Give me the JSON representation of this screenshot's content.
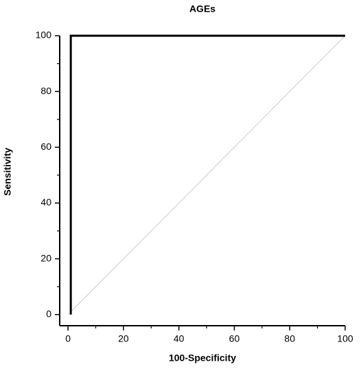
{
  "chart_data": {
    "type": "line",
    "title": "AGEs",
    "x_label": "100-Specificity",
    "y_label": "Sensitivity",
    "series": [
      {
        "color": "#cccccc",
        "x": [
          0,
          100
        ],
        "values": [
          0,
          100
        ]
      },
      {
        "color": "#000000",
        "x": [
          1,
          1,
          100
        ],
        "values": [
          0,
          100,
          100
        ]
      }
    ],
    "xlim": [
      -3,
      100
    ],
    "ylim": [
      -4,
      100
    ],
    "xticks": [
      0,
      20,
      40,
      60,
      80,
      100
    ],
    "yticks": [
      0,
      20,
      40,
      60,
      80,
      100
    ],
    "xminorticks": [
      10,
      30,
      50,
      70,
      90
    ],
    "yminorticks": [
      10,
      30,
      50,
      70,
      90
    ]
  }
}
